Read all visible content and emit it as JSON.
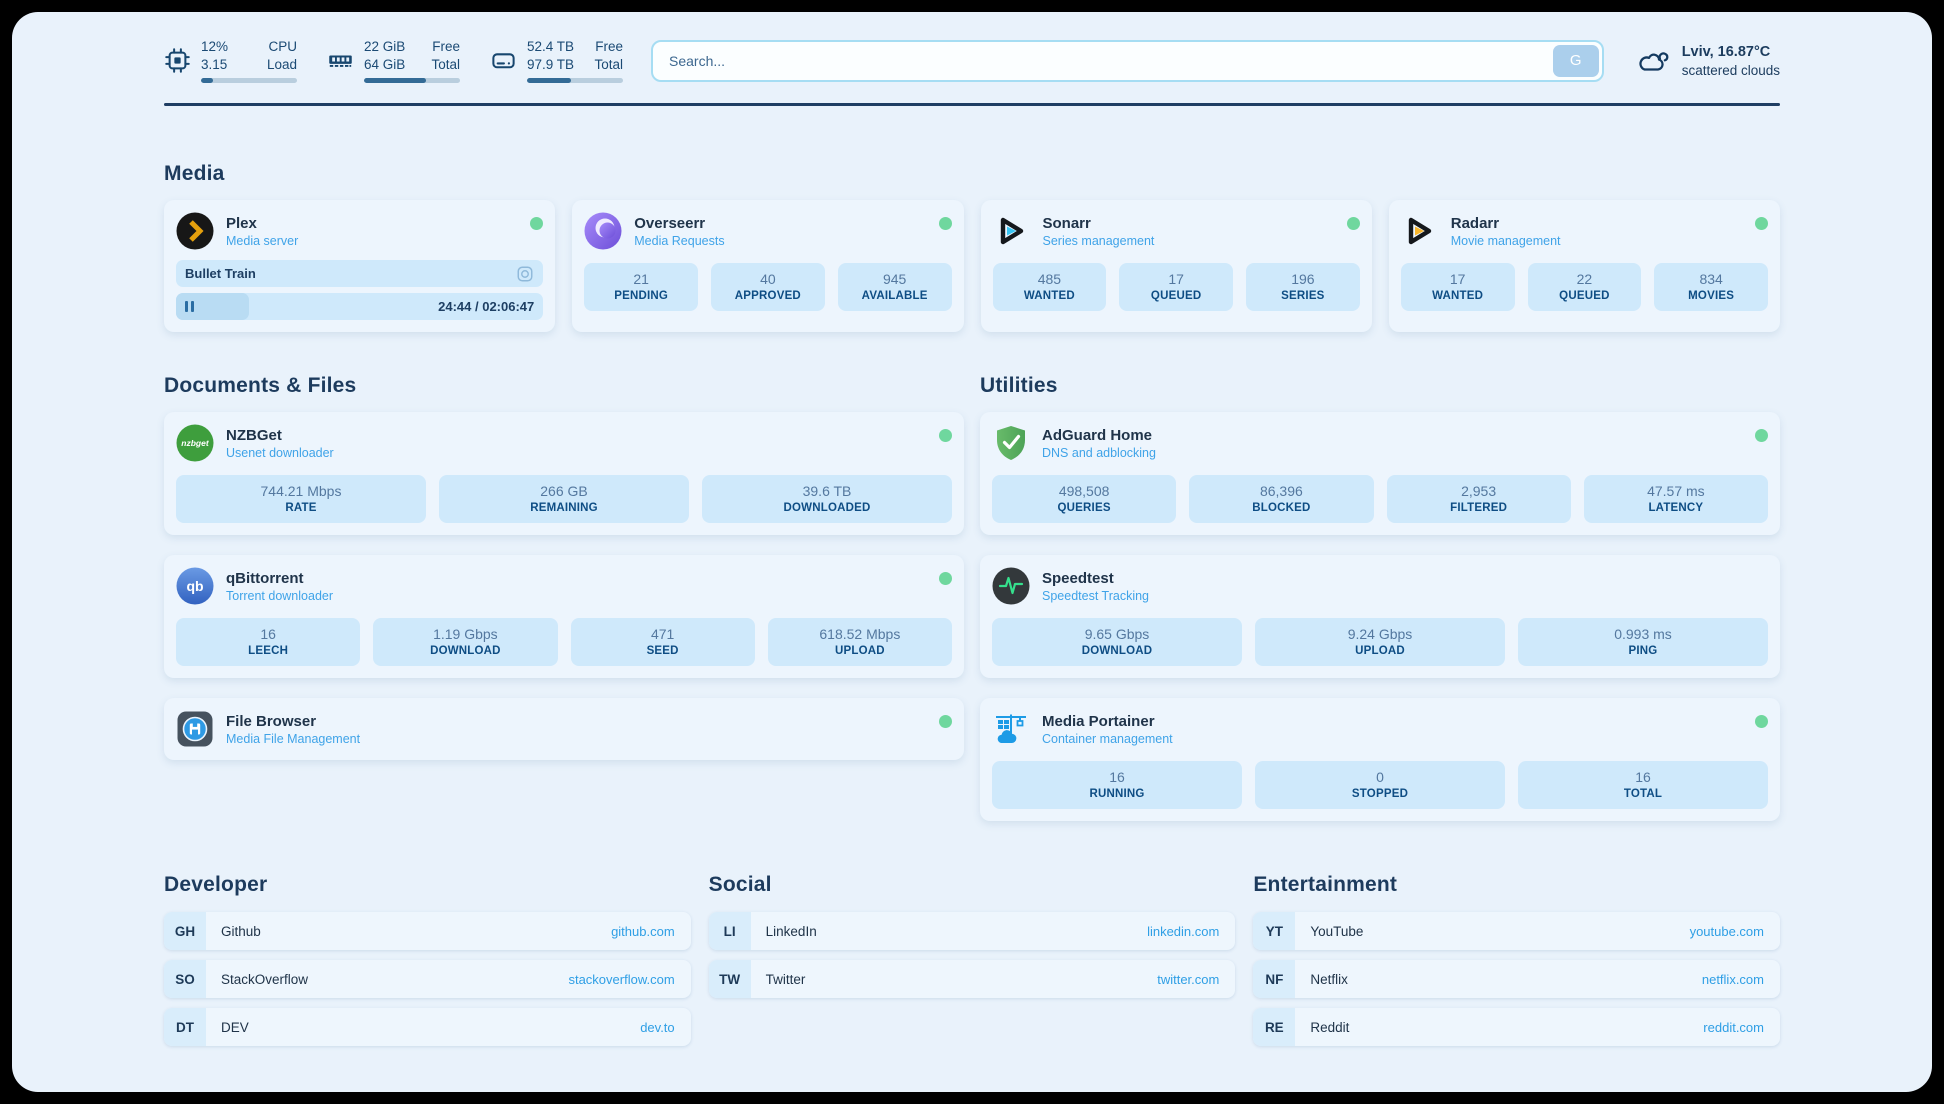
{
  "header": {
    "stats": [
      {
        "icon": "cpu-icon",
        "top_value": "12%",
        "bottom_value": "3.15",
        "top_label": "CPU",
        "bottom_label": "Load",
        "progress": 12
      },
      {
        "icon": "ram-icon",
        "top_value": "22 GiB",
        "bottom_value": "64 GiB",
        "top_label": "Free",
        "bottom_label": "Total",
        "progress": 65
      },
      {
        "icon": "disk-icon",
        "top_value": "52.4 TB",
        "bottom_value": "97.9 TB",
        "top_label": "Free",
        "bottom_label": "Total",
        "progress": 46
      }
    ],
    "search": {
      "placeholder": "Search...",
      "button_label": "G"
    },
    "weather": {
      "location_temp": "Lviv, 16.87°C",
      "condition": "scattered clouds"
    }
  },
  "sections": {
    "media": {
      "title": "Media",
      "plex": {
        "name": "Plex",
        "description": "Media server",
        "now_playing": "Bullet Train",
        "time": "24:44 / 02:06:47",
        "progress": 20
      },
      "overseerr": {
        "name": "Overseerr",
        "description": "Media Requests",
        "stats": [
          {
            "value": "21",
            "label": "PENDING"
          },
          {
            "value": "40",
            "label": "APPROVED"
          },
          {
            "value": "945",
            "label": "AVAILABLE"
          }
        ]
      },
      "sonarr": {
        "name": "Sonarr",
        "description": "Series management",
        "stats": [
          {
            "value": "485",
            "label": "WANTED"
          },
          {
            "value": "17",
            "label": "QUEUED"
          },
          {
            "value": "196",
            "label": "SERIES"
          }
        ]
      },
      "radarr": {
        "name": "Radarr",
        "description": "Movie management",
        "stats": [
          {
            "value": "17",
            "label": "WANTED"
          },
          {
            "value": "22",
            "label": "QUEUED"
          },
          {
            "value": "834",
            "label": "MOVIES"
          }
        ]
      }
    },
    "documents": {
      "title": "Documents & Files",
      "nzbget": {
        "name": "NZBGet",
        "description": "Usenet downloader",
        "icon_text": "nzbget",
        "stats": [
          {
            "value": "744.21 Mbps",
            "label": "RATE"
          },
          {
            "value": "266 GB",
            "label": "REMAINING"
          },
          {
            "value": "39.6 TB",
            "label": "DOWNLOADED"
          }
        ]
      },
      "qbittorrent": {
        "name": "qBittorrent",
        "description": "Torrent downloader",
        "icon_text": "qb",
        "stats": [
          {
            "value": "16",
            "label": "LEECH"
          },
          {
            "value": "1.19 Gbps",
            "label": "DOWNLOAD"
          },
          {
            "value": "471",
            "label": "SEED"
          },
          {
            "value": "618.52 Mbps",
            "label": "UPLOAD"
          }
        ]
      },
      "filebrowser": {
        "name": "File Browser",
        "description": "Media File Management"
      }
    },
    "utilities": {
      "title": "Utilities",
      "adguard": {
        "name": "AdGuard Home",
        "description": "DNS and adblocking",
        "stats": [
          {
            "value": "498,508",
            "label": "QUERIES"
          },
          {
            "value": "86,396",
            "label": "BLOCKED"
          },
          {
            "value": "2,953",
            "label": "FILTERED"
          },
          {
            "value": "47.57 ms",
            "label": "LATENCY"
          }
        ]
      },
      "speedtest": {
        "name": "Speedtest",
        "description": "Speedtest Tracking",
        "stats": [
          {
            "value": "9.65 Gbps",
            "label": "DOWNLOAD"
          },
          {
            "value": "9.24 Gbps",
            "label": "UPLOAD"
          },
          {
            "value": "0.993 ms",
            "label": "PING"
          }
        ]
      },
      "portainer": {
        "name": "Media Portainer",
        "description": "Container management",
        "stats": [
          {
            "value": "16",
            "label": "RUNNING"
          },
          {
            "value": "0",
            "label": "STOPPED"
          },
          {
            "value": "16",
            "label": "TOTAL"
          }
        ]
      }
    },
    "developer": {
      "title": "Developer",
      "links": [
        {
          "badge": "GH",
          "name": "Github",
          "url": "github.com"
        },
        {
          "badge": "SO",
          "name": "StackOverflow",
          "url": "stackoverflow.com"
        },
        {
          "badge": "DT",
          "name": "DEV",
          "url": "dev.to"
        }
      ]
    },
    "social": {
      "title": "Social",
      "links": [
        {
          "badge": "LI",
          "name": "LinkedIn",
          "url": "linkedin.com"
        },
        {
          "badge": "TW",
          "name": "Twitter",
          "url": "twitter.com"
        }
      ]
    },
    "entertainment": {
      "title": "Entertainment",
      "links": [
        {
          "badge": "YT",
          "name": "YouTube",
          "url": "youtube.com"
        },
        {
          "badge": "NF",
          "name": "Netflix",
          "url": "netflix.com"
        },
        {
          "badge": "RE",
          "name": "Reddit",
          "url": "reddit.com"
        }
      ]
    }
  },
  "colors": {
    "accent_blue": "#3fa3e8",
    "status_green": "#6fd79e",
    "navy": "#1d3b5d",
    "stat_box": "#cfe9fb"
  }
}
